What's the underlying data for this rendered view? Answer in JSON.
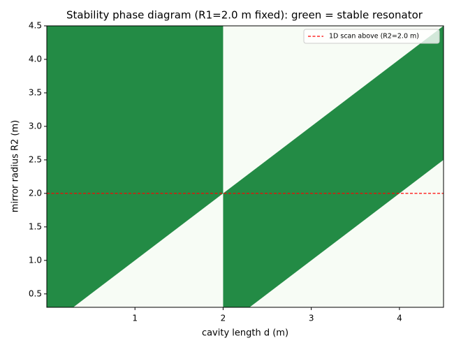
{
  "chart_data": {
    "type": "region",
    "title": "Stability phase diagram (R1=2.0 m fixed): green = stable resonator",
    "xlabel": "cavity length d (m)",
    "ylabel": "mirror radius R2 (m)",
    "xlim": [
      0,
      4.5
    ],
    "ylim": [
      0.3,
      4.5
    ],
    "xticks": [
      1,
      2,
      3,
      4
    ],
    "yticks": [
      0.5,
      {
        "value": 1,
        "label": "1.0"
      },
      1.5,
      {
        "value": 2,
        "label": "2.0"
      },
      2.5,
      {
        "value": 3,
        "label": "3.0"
      },
      3.5,
      {
        "value": 4,
        "label": "4.0"
      },
      4.5
    ],
    "background_color": "#f7fcf5",
    "region_color": "#238b45",
    "regions": [
      {
        "x": [
          0,
          0.3,
          2,
          2,
          0
        ],
        "y": [
          0.3,
          0.3,
          2,
          4.5,
          4.5
        ]
      },
      {
        "x": [
          2,
          2.3,
          4.5,
          4.5,
          2
        ],
        "y": [
          0.3,
          0.3,
          2.5,
          4.5,
          2
        ]
      }
    ],
    "hlines": [
      {
        "name": "1D scan above (R2=2.0 m)",
        "value": 2,
        "color": "#ff0000"
      }
    ],
    "legend": "upper right"
  }
}
